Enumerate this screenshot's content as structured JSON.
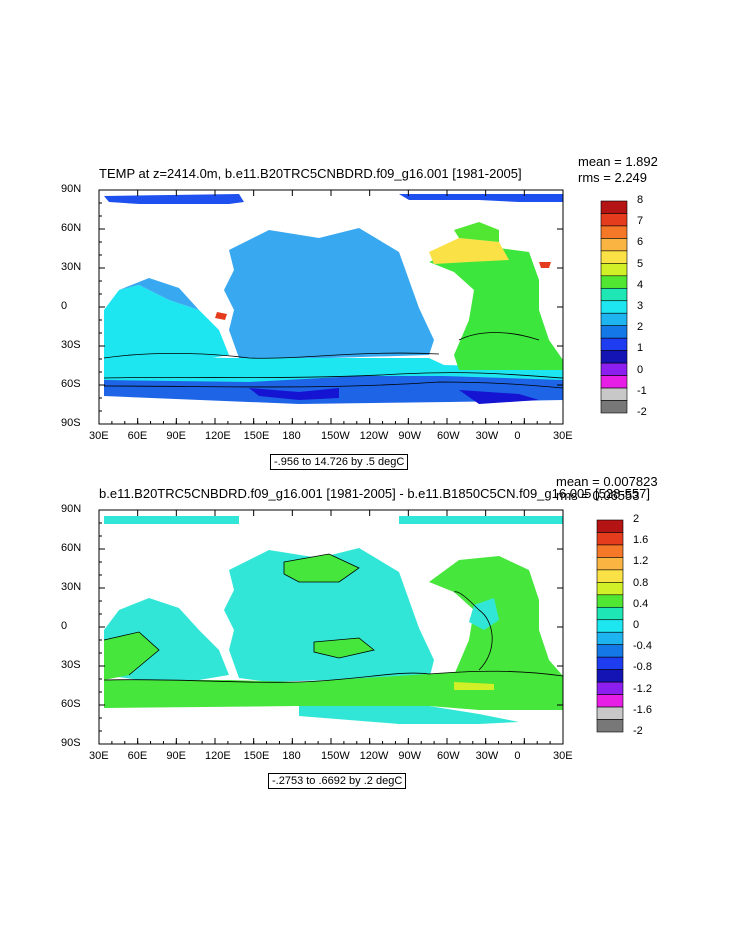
{
  "panel1": {
    "title": "TEMP at z=2414.0m, b.e11.B20TRC5CNBDRD.f09_g16.001 [1981-2005]",
    "mean_text": "mean = 1.892",
    "rms_text": "rms = 2.249",
    "range_text": "-.956 to 14.726 by .5 degC",
    "colorbar": {
      "labels": [
        "8",
        "7",
        "6",
        "5",
        "4",
        "3",
        "2",
        "1",
        "0",
        "-1",
        "-2"
      ],
      "colors": [
        "#b41414",
        "#e63c1e",
        "#f57828",
        "#fab441",
        "#fae146",
        "#d2f028",
        "#50e632",
        "#1ee6b4",
        "#1ee6f0",
        "#1eb4f0",
        "#1478e6",
        "#1e3cf0",
        "#1414b4",
        "#8c1ef0",
        "#e61ee6",
        "#c8c8c8",
        "#787878"
      ]
    },
    "map_colors": {
      "ocean_main": "#38a8f0",
      "southern_band": "#1ee6f0",
      "atlantic": "#3ce63c",
      "arctic": "#1e50f0",
      "deep_south": "#1e64e6",
      "very_deep": "#1414d2"
    }
  },
  "panel2": {
    "title": "b.e11.B20TRC5CNBDRD.f09_g16.001 [1981-2005] - b.e11.B1850C5CN.f09_g16.005 [528-557]",
    "mean_text": "mean = 0.007823",
    "rms_text": "rms = 0.06553",
    "range_text": "-.2753 to .6692 by .2 degC",
    "colorbar": {
      "labels": [
        "2",
        "1.6",
        "1.2",
        "0.8",
        "0.4",
        "0",
        "-0.4",
        "-0.8",
        "-1.2",
        "-1.6",
        "-2"
      ],
      "colors": [
        "#b41414",
        "#e63c1e",
        "#f57828",
        "#fab441",
        "#fae146",
        "#d2f028",
        "#50e632",
        "#1ee6b4",
        "#1ee6f0",
        "#1eb4f0",
        "#1478e6",
        "#1e3cf0",
        "#1414b4",
        "#8c1ef0",
        "#e61ee6",
        "#c8c8c8",
        "#787878"
      ]
    },
    "map_colors": {
      "ocean_main": "#32e6d7",
      "green": "#46e63c"
    }
  },
  "axes": {
    "lat_labels": [
      "90N",
      "60N",
      "30N",
      "0",
      "30S",
      "60S",
      "90S"
    ],
    "lon_labels": [
      "30E",
      "60E",
      "90E",
      "120E",
      "150E",
      "180",
      "150W",
      "120W",
      "90W",
      "60W",
      "30W",
      "0",
      "30E"
    ]
  }
}
